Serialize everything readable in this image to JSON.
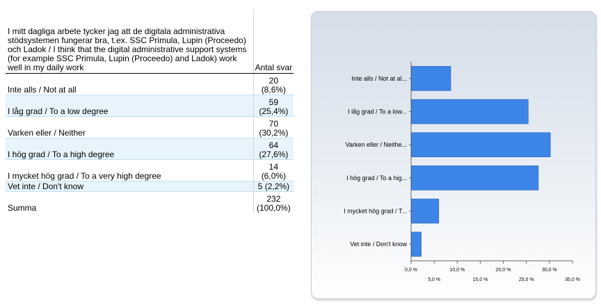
{
  "table": {
    "question": "I mitt dagliga arbete tycker jag att de digitala administrativa stödsystemen fungerar bra, t.ex. SSC Primula, Lupin (Proceedo) och Ladok / I think that the digital administrative support systems (for example SSC Primula, Lupin (Proceedo) and  Ladok) work well in my daily work",
    "count_header": "Antal svar",
    "rows": [
      {
        "label": "Inte alls / Not at all",
        "count": "20",
        "percent": "(8,6%)"
      },
      {
        "label": "I låg grad / To a low degree",
        "count": "59",
        "percent": "(25,4%)"
      },
      {
        "label": "Varken eller / Neither",
        "count": "70",
        "percent": "(30,2%)"
      },
      {
        "label": "I hög grad / To a high degree",
        "count": "64",
        "percent": "(27,6%)"
      },
      {
        "label": "I mycket hög grad / To a very high degree",
        "count": "14",
        "percent": "(6,0%)"
      },
      {
        "label": "Vet inte / Don't know",
        "count": "5",
        "percent": "(2,2%)"
      }
    ],
    "total": {
      "label": "Summa",
      "count": "232",
      "percent": "(100,0%)"
    }
  },
  "chart_data": {
    "type": "bar",
    "orientation": "horizontal",
    "categories": [
      "Inte alls / Not at al...",
      "I låg grad / To a low...",
      "Varken eller / Neithe...",
      "I hög grad / To a hig...",
      "I mycket hög grad / T...",
      "Vet inte / Don't know"
    ],
    "values": [
      8.6,
      25.4,
      30.2,
      27.6,
      6.0,
      2.2
    ],
    "xlim": [
      0,
      35
    ],
    "tick_labels_upper": [
      "0,0 %",
      "10,0 %",
      "20,0 %",
      "30,0 %"
    ],
    "tick_labels_lower": [
      "5,0 %",
      "15,0 %",
      "25,0 %",
      "35,0 %"
    ],
    "grid": false,
    "bar_color": "#3d85e6",
    "title": "",
    "xlabel": "",
    "ylabel": ""
  }
}
